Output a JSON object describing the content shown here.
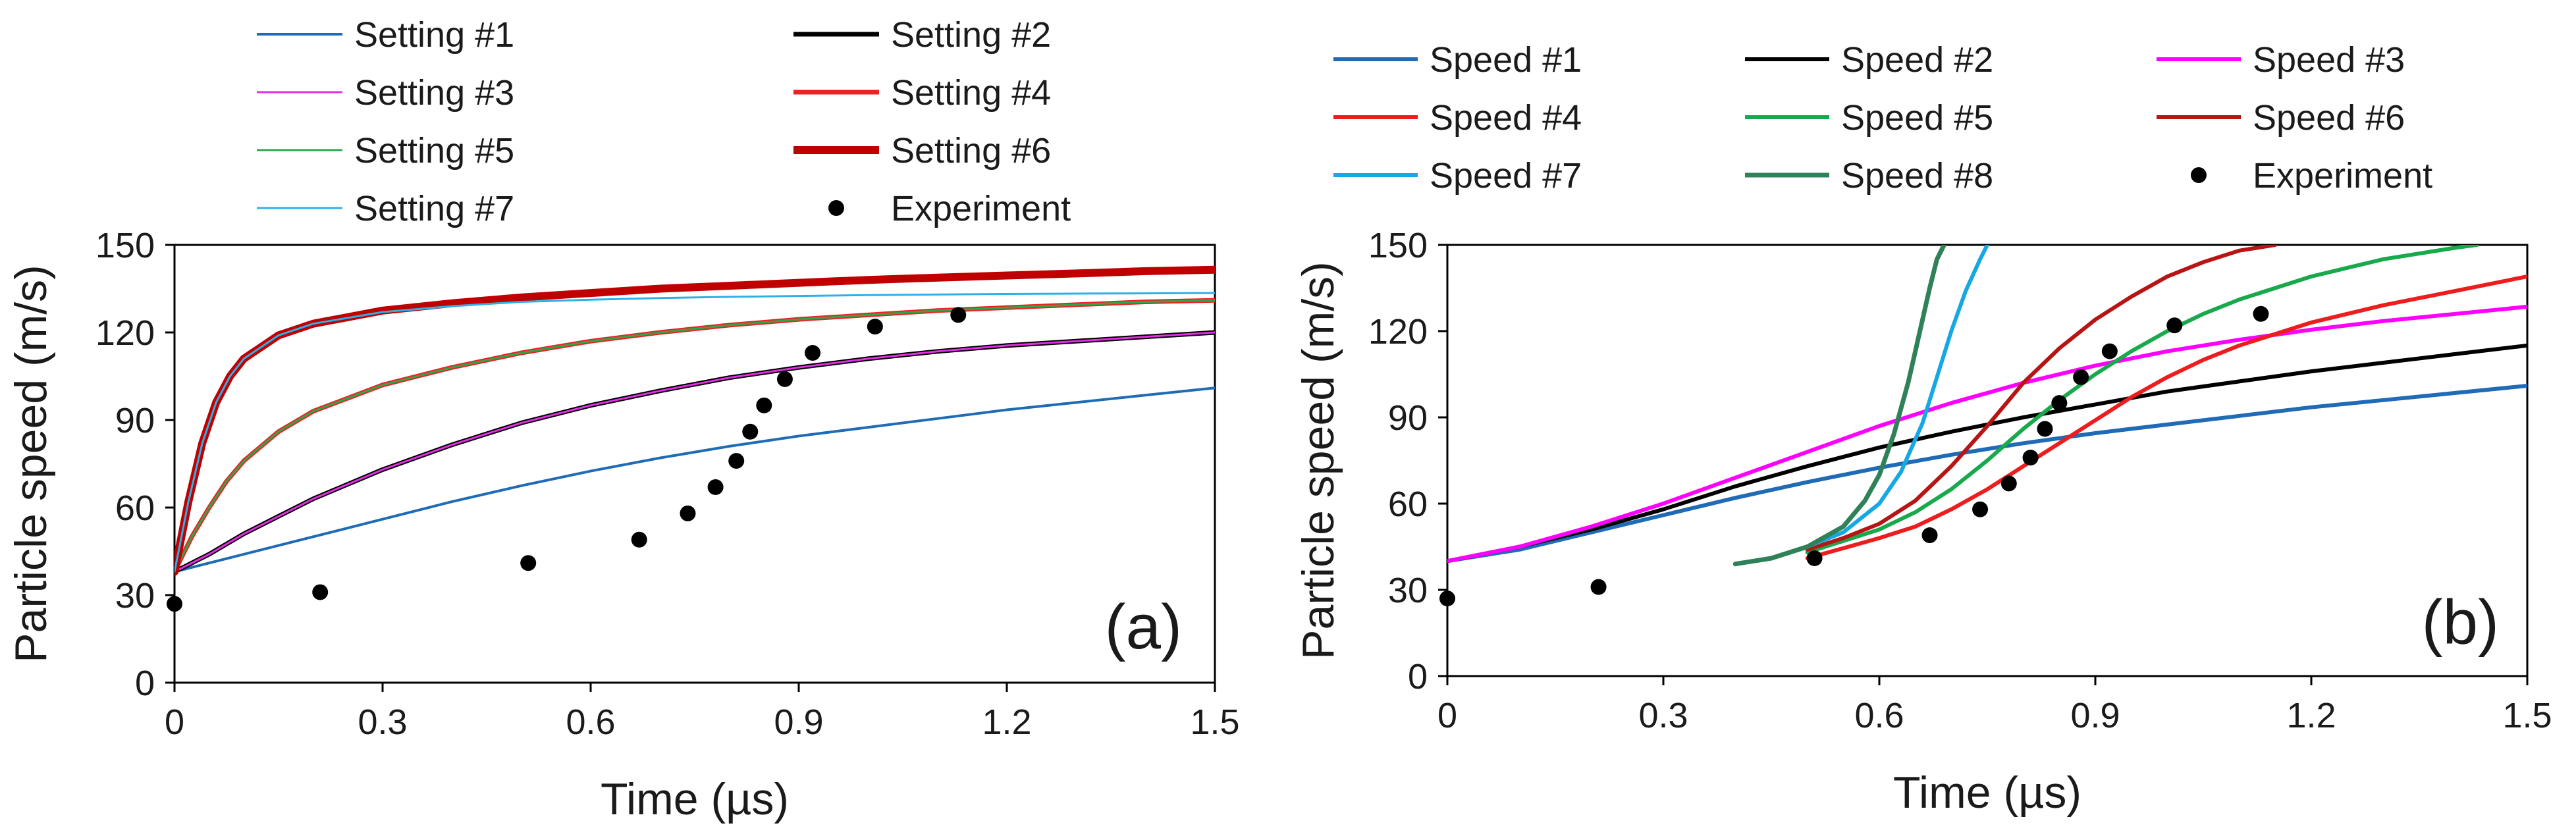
{
  "chart_data": [
    {
      "type": "line",
      "panel": "a",
      "panel_label": "(a)",
      "xlabel": "Time (µs)",
      "ylabel": "Particle speed (m/s)",
      "xlim": [
        0,
        1.5
      ],
      "ylim": [
        0,
        150
      ],
      "xticks": [
        0,
        0.3,
        0.6,
        0.9,
        1.2,
        1.5
      ],
      "xtick_labels": [
        "0",
        "0.3",
        "0.6",
        "0.9",
        "1.2",
        "1.5"
      ],
      "yticks": [
        0,
        30,
        60,
        90,
        120,
        150
      ],
      "ytick_labels": [
        "0",
        "30",
        "60",
        "90",
        "120",
        "150"
      ],
      "grid": false,
      "legend_location": "above",
      "series": [
        {
          "name": "Setting #1",
          "color": "#1f6bb5",
          "width": 4,
          "x": [
            0,
            0.1,
            0.2,
            0.3,
            0.4,
            0.5,
            0.6,
            0.7,
            0.8,
            0.9,
            1.0,
            1.1,
            1.2,
            1.3,
            1.4,
            1.5
          ],
          "y": [
            38,
            44,
            50,
            56,
            62,
            67.5,
            72.5,
            77,
            81,
            84.5,
            87.5,
            90.5,
            93.5,
            96,
            98.5,
            101
          ]
        },
        {
          "name": "Setting #2",
          "color": "#000000",
          "width": 7,
          "x": [
            0,
            0.05,
            0.1,
            0.15,
            0.2,
            0.3,
            0.4,
            0.5,
            0.6,
            0.7,
            0.8,
            0.9,
            1.0,
            1.1,
            1.2,
            1.3,
            1.4,
            1.5
          ],
          "y": [
            38,
            44,
            51,
            57,
            63,
            73,
            81.5,
            89,
            95,
            100,
            104.5,
            108,
            111,
            113.5,
            115.5,
            117,
            118.5,
            120
          ]
        },
        {
          "name": "Setting #3",
          "color": "#e62ee6",
          "width": 3,
          "x": [
            0,
            0.05,
            0.1,
            0.15,
            0.2,
            0.3,
            0.4,
            0.5,
            0.6,
            0.7,
            0.8,
            0.9,
            1.0,
            1.1,
            1.2,
            1.3,
            1.4,
            1.5
          ],
          "y": [
            38,
            44,
            51,
            57,
            63,
            73,
            81.5,
            89,
            95,
            100,
            104.5,
            108,
            111,
            113.5,
            115.5,
            117,
            118.5,
            120
          ]
        },
        {
          "name": "Setting #4",
          "color": "#ee2222",
          "width": 7,
          "x": [
            0,
            0.025,
            0.05,
            0.075,
            0.1,
            0.15,
            0.2,
            0.3,
            0.4,
            0.5,
            0.6,
            0.7,
            0.8,
            0.9,
            1.0,
            1.1,
            1.2,
            1.3,
            1.4,
            1.5
          ],
          "y": [
            38,
            50,
            60,
            69,
            76,
            86,
            93,
            102,
            108,
            113,
            117,
            120,
            122.5,
            124.5,
            126,
            127.5,
            128.5,
            129.5,
            130.5,
            131
          ]
        },
        {
          "name": "Setting #5",
          "color": "#2ea64a",
          "width": 3,
          "x": [
            0,
            0.025,
            0.05,
            0.075,
            0.1,
            0.15,
            0.2,
            0.3,
            0.4,
            0.5,
            0.6,
            0.7,
            0.8,
            0.9,
            1.0,
            1.1,
            1.2,
            1.3,
            1.4,
            1.5
          ],
          "y": [
            38,
            50,
            60,
            69,
            76,
            86,
            93,
            102,
            108,
            113,
            117,
            120,
            122.5,
            124.5,
            126,
            127.5,
            128.5,
            129.5,
            130.5,
            131
          ]
        },
        {
          "name": "Setting #6",
          "color": "#c00000",
          "width": 12,
          "x": [
            0,
            0.02,
            0.04,
            0.06,
            0.08,
            0.1,
            0.15,
            0.2,
            0.3,
            0.4,
            0.5,
            0.6,
            0.7,
            0.8,
            0.9,
            1.0,
            1.1,
            1.2,
            1.3,
            1.4,
            1.5
          ],
          "y": [
            38,
            62,
            82,
            96,
            105,
            111,
            119,
            123,
            127.5,
            130,
            132,
            133.5,
            135,
            136,
            137,
            138,
            138.8,
            139.5,
            140.2,
            141,
            141.5
          ]
        },
        {
          "name": "Setting #7",
          "color": "#2eb0e6",
          "width": 3,
          "x": [
            0,
            0.02,
            0.04,
            0.06,
            0.08,
            0.1,
            0.15,
            0.2,
            0.3,
            0.4,
            0.5,
            0.6,
            0.7,
            0.8,
            0.9,
            1.0,
            1.1,
            1.2,
            1.3,
            1.4,
            1.5
          ],
          "y": [
            38,
            62,
            82,
            96,
            105,
            111,
            119,
            123,
            127,
            129,
            130.5,
            131.2,
            131.8,
            132.2,
            132.5,
            132.8,
            133,
            133.2,
            133.3,
            133.4,
            133.5
          ]
        }
      ],
      "experiment": {
        "name": "Experiment",
        "color": "#000000",
        "x": [
          0,
          0.21,
          0.51,
          0.67,
          0.74,
          0.78,
          0.81,
          0.83,
          0.85,
          0.88,
          0.92,
          1.01,
          1.13
        ],
        "y": [
          27,
          31,
          41,
          49,
          58,
          67,
          76,
          86,
          95,
          104,
          113,
          122,
          126
        ]
      },
      "legend_order": [
        "Setting #1",
        "Setting #2",
        "Setting #3",
        "Setting #4",
        "Setting #5",
        "Setting #6",
        "Setting #7",
        "Experiment"
      ]
    },
    {
      "type": "line",
      "panel": "b",
      "panel_label": "(b)",
      "xlabel": "Time (µs)",
      "ylabel": "Particle speed (m/s)",
      "xlim": [
        0,
        1.5
      ],
      "ylim": [
        0,
        150
      ],
      "xticks": [
        0,
        0.3,
        0.6,
        0.9,
        1.2,
        1.5
      ],
      "xtick_labels": [
        "0",
        "0.3",
        "0.6",
        "0.9",
        "1.2",
        "1.5"
      ],
      "yticks": [
        0,
        30,
        60,
        90,
        120,
        150
      ],
      "ytick_labels": [
        "0",
        "30",
        "60",
        "90",
        "120",
        "150"
      ],
      "grid": false,
      "legend_location": "above",
      "series": [
        {
          "name": "Speed #1",
          "color": "#1f6bb5",
          "width": 6,
          "x": [
            0,
            0.1,
            0.2,
            0.3,
            0.4,
            0.5,
            0.6,
            0.7,
            0.8,
            0.9,
            1.0,
            1.1,
            1.2,
            1.3,
            1.4,
            1.5
          ],
          "y": [
            40,
            44,
            50,
            56,
            62,
            67.5,
            72.5,
            77,
            81,
            84.5,
            87.5,
            90.5,
            93.5,
            96,
            98.5,
            101
          ]
        },
        {
          "name": "Speed #2",
          "color": "#000000",
          "width": 6,
          "x": [
            0,
            0.1,
            0.2,
            0.3,
            0.4,
            0.5,
            0.6,
            0.7,
            0.8,
            0.9,
            1.0,
            1.1,
            1.2,
            1.3,
            1.4,
            1.5
          ],
          "y": [
            40,
            45,
            51,
            58,
            66,
            73,
            79.5,
            85,
            90,
            94.5,
            99,
            102.5,
            106,
            109,
            112,
            115
          ]
        },
        {
          "name": "Speed #3",
          "color": "#ff00ff",
          "width": 6,
          "x": [
            0,
            0.1,
            0.2,
            0.3,
            0.4,
            0.5,
            0.6,
            0.7,
            0.8,
            0.9,
            1.0,
            1.1,
            1.2,
            1.3,
            1.4,
            1.5
          ],
          "y": [
            40,
            45,
            52,
            60,
            69,
            78,
            87,
            95,
            102,
            108,
            113,
            117,
            120.5,
            123.5,
            126,
            128.5
          ]
        },
        {
          "name": "Speed #4",
          "color": "#ee1c1c",
          "width": 6,
          "x": [
            0.5,
            0.6,
            0.65,
            0.7,
            0.75,
            0.8,
            0.85,
            0.9,
            0.95,
            1.0,
            1.05,
            1.1,
            1.15,
            1.2,
            1.3,
            1.4,
            1.5
          ],
          "y": [
            41,
            48,
            52,
            58,
            65,
            73,
            81,
            89,
            97,
            104,
            110,
            115,
            119,
            123,
            129,
            134,
            139
          ]
        },
        {
          "name": "Speed #5",
          "color": "#18a94c",
          "width": 6,
          "x": [
            0.5,
            0.6,
            0.65,
            0.7,
            0.75,
            0.8,
            0.85,
            0.9,
            0.95,
            1.0,
            1.05,
            1.1,
            1.2,
            1.3,
            1.4,
            1.43
          ],
          "y": [
            43,
            51,
            57,
            65,
            75,
            86,
            96,
            105,
            113,
            120,
            126,
            131,
            139,
            145,
            149,
            150
          ]
        },
        {
          "name": "Speed #6",
          "color": "#b81414",
          "width": 6,
          "x": [
            0.5,
            0.55,
            0.6,
            0.65,
            0.7,
            0.75,
            0.8,
            0.85,
            0.9,
            0.95,
            1.0,
            1.05,
            1.1,
            1.15
          ],
          "y": [
            44,
            48,
            53,
            61,
            73,
            87,
            102,
            114,
            124,
            132,
            139,
            144,
            148,
            150
          ]
        },
        {
          "name": "Speed #7",
          "color": "#16a8e4",
          "width": 6,
          "x": [
            0.4,
            0.45,
            0.5,
            0.55,
            0.6,
            0.63,
            0.66,
            0.68,
            0.7,
            0.72,
            0.74,
            0.75
          ],
          "y": [
            39,
            41,
            45,
            50,
            60,
            71,
            88,
            104,
            120,
            134,
            145,
            150
          ]
        },
        {
          "name": "Speed #8",
          "color": "#2e8158",
          "width": 7,
          "x": [
            0.4,
            0.45,
            0.5,
            0.55,
            0.58,
            0.6,
            0.62,
            0.64,
            0.65,
            0.66,
            0.67,
            0.68,
            0.69
          ],
          "y": [
            39,
            41,
            45,
            52,
            61,
            70,
            84,
            102,
            113,
            124,
            135,
            145,
            150
          ]
        }
      ],
      "experiment": {
        "name": "Experiment",
        "color": "#000000",
        "x": [
          0,
          0.21,
          0.51,
          0.67,
          0.74,
          0.78,
          0.81,
          0.83,
          0.85,
          0.88,
          0.92,
          1.01,
          1.13
        ],
        "y": [
          27,
          31,
          41,
          49,
          58,
          67,
          76,
          86,
          95,
          104,
          113,
          122,
          126
        ]
      },
      "legend_order": [
        "Speed #1",
        "Speed #2",
        "Speed #3",
        "Speed #4",
        "Speed #5",
        "Speed #6",
        "Speed #7",
        "Speed #8",
        "Experiment"
      ]
    }
  ]
}
